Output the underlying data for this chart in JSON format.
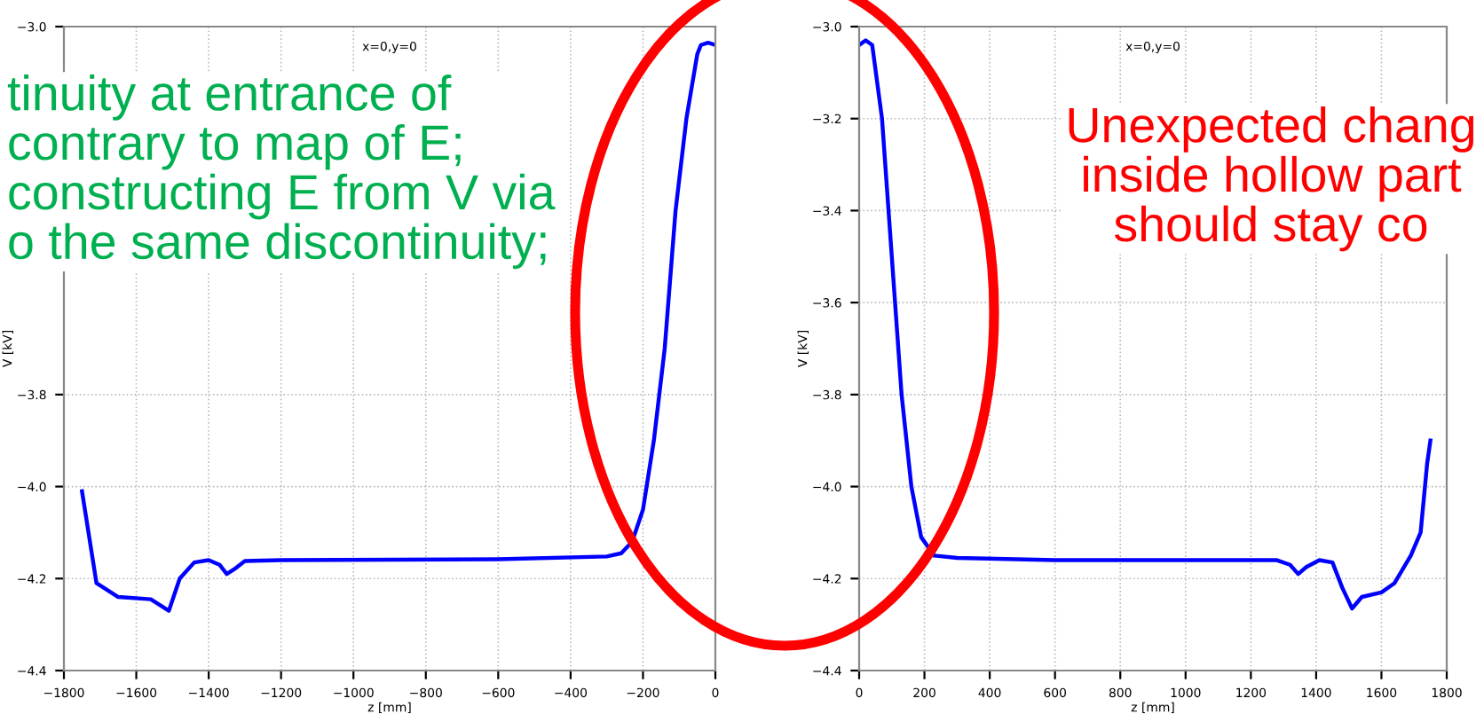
{
  "chart_data": [
    {
      "type": "line",
      "title": "x=0,y=0",
      "xlabel": "z [mm]",
      "ylabel": "V [kV]",
      "xlim": [
        -1800,
        0
      ],
      "xticks": [
        -1800,
        -1600,
        -1400,
        -1200,
        -1000,
        -800,
        -600,
        -400,
        -200,
        0
      ],
      "ylim": [
        -4.4,
        -3.0
      ],
      "yticks": [
        {
          "value": -4.4,
          "label": "−4.4"
        },
        {
          "value": -4.2,
          "label": "−4.2"
        },
        {
          "value": -4.0,
          "label": "−4.0"
        },
        {
          "value": -3.8,
          "label": "−3.8"
        },
        {
          "value": -3.0,
          "label": "−3.0"
        }
      ],
      "grid": true,
      "line_style": "solid",
      "annotations": [
        "tinuity at entrance of\ncontrary to map of E;\nconstructing E from V via\no the same discontinuity;"
      ],
      "series": [
        {
          "color": "#0000ff",
          "x": [
            -1750,
            -1710,
            -1650,
            -1560,
            -1530,
            -1510,
            -1480,
            -1440,
            -1400,
            -1370,
            -1350,
            -1330,
            -1300,
            -1200,
            -600,
            -300,
            -260,
            -230,
            -200,
            -170,
            -140,
            -110,
            -80,
            -50,
            -40,
            -20,
            0
          ],
          "values": [
            -4.01,
            -4.21,
            -4.24,
            -4.245,
            -4.26,
            -4.27,
            -4.2,
            -4.165,
            -4.16,
            -4.17,
            -4.19,
            -4.18,
            -4.162,
            -4.16,
            -4.158,
            -4.152,
            -4.145,
            -4.12,
            -4.05,
            -3.9,
            -3.7,
            -3.4,
            -3.2,
            -3.06,
            -3.04,
            -3.035,
            -3.04
          ]
        }
      ]
    },
    {
      "type": "line",
      "title": "x=0,y=0",
      "xlabel": "z [mm]",
      "ylabel": "V [kV]",
      "xlim": [
        0,
        1800
      ],
      "xticks": [
        0,
        200,
        400,
        600,
        800,
        1000,
        1200,
        1400,
        1600,
        1800
      ],
      "ylim": [
        -4.4,
        -3.0
      ],
      "yticks": [
        {
          "value": -4.4,
          "label": "−4.4"
        },
        {
          "value": -4.2,
          "label": "−4.2"
        },
        {
          "value": -4.0,
          "label": "−4.0"
        },
        {
          "value": -3.8,
          "label": "−3.8"
        },
        {
          "value": -3.6,
          "label": "−3.6"
        },
        {
          "value": -3.4,
          "label": "−3.4"
        },
        {
          "value": -3.2,
          "label": "−3.2"
        },
        {
          "value": -3.0,
          "label": "−3.0"
        }
      ],
      "grid": true,
      "line_style": "solid",
      "annotations": [
        "Unexpected chang\ninside hollow part\nshould stay co"
      ],
      "series": [
        {
          "color": "#0000ff",
          "x": [
            0,
            20,
            40,
            70,
            100,
            130,
            160,
            190,
            230,
            300,
            600,
            1280,
            1320,
            1345,
            1370,
            1410,
            1450,
            1480,
            1510,
            1540,
            1600,
            1640,
            1690,
            1720,
            1740,
            1750
          ],
          "values": [
            -3.04,
            -3.03,
            -3.04,
            -3.2,
            -3.5,
            -3.8,
            -4.0,
            -4.11,
            -4.15,
            -4.155,
            -4.16,
            -4.16,
            -4.17,
            -4.19,
            -4.175,
            -4.16,
            -4.165,
            -4.22,
            -4.265,
            -4.24,
            -4.23,
            -4.21,
            -4.15,
            -4.1,
            -3.95,
            -3.9
          ]
        }
      ]
    }
  ]
}
